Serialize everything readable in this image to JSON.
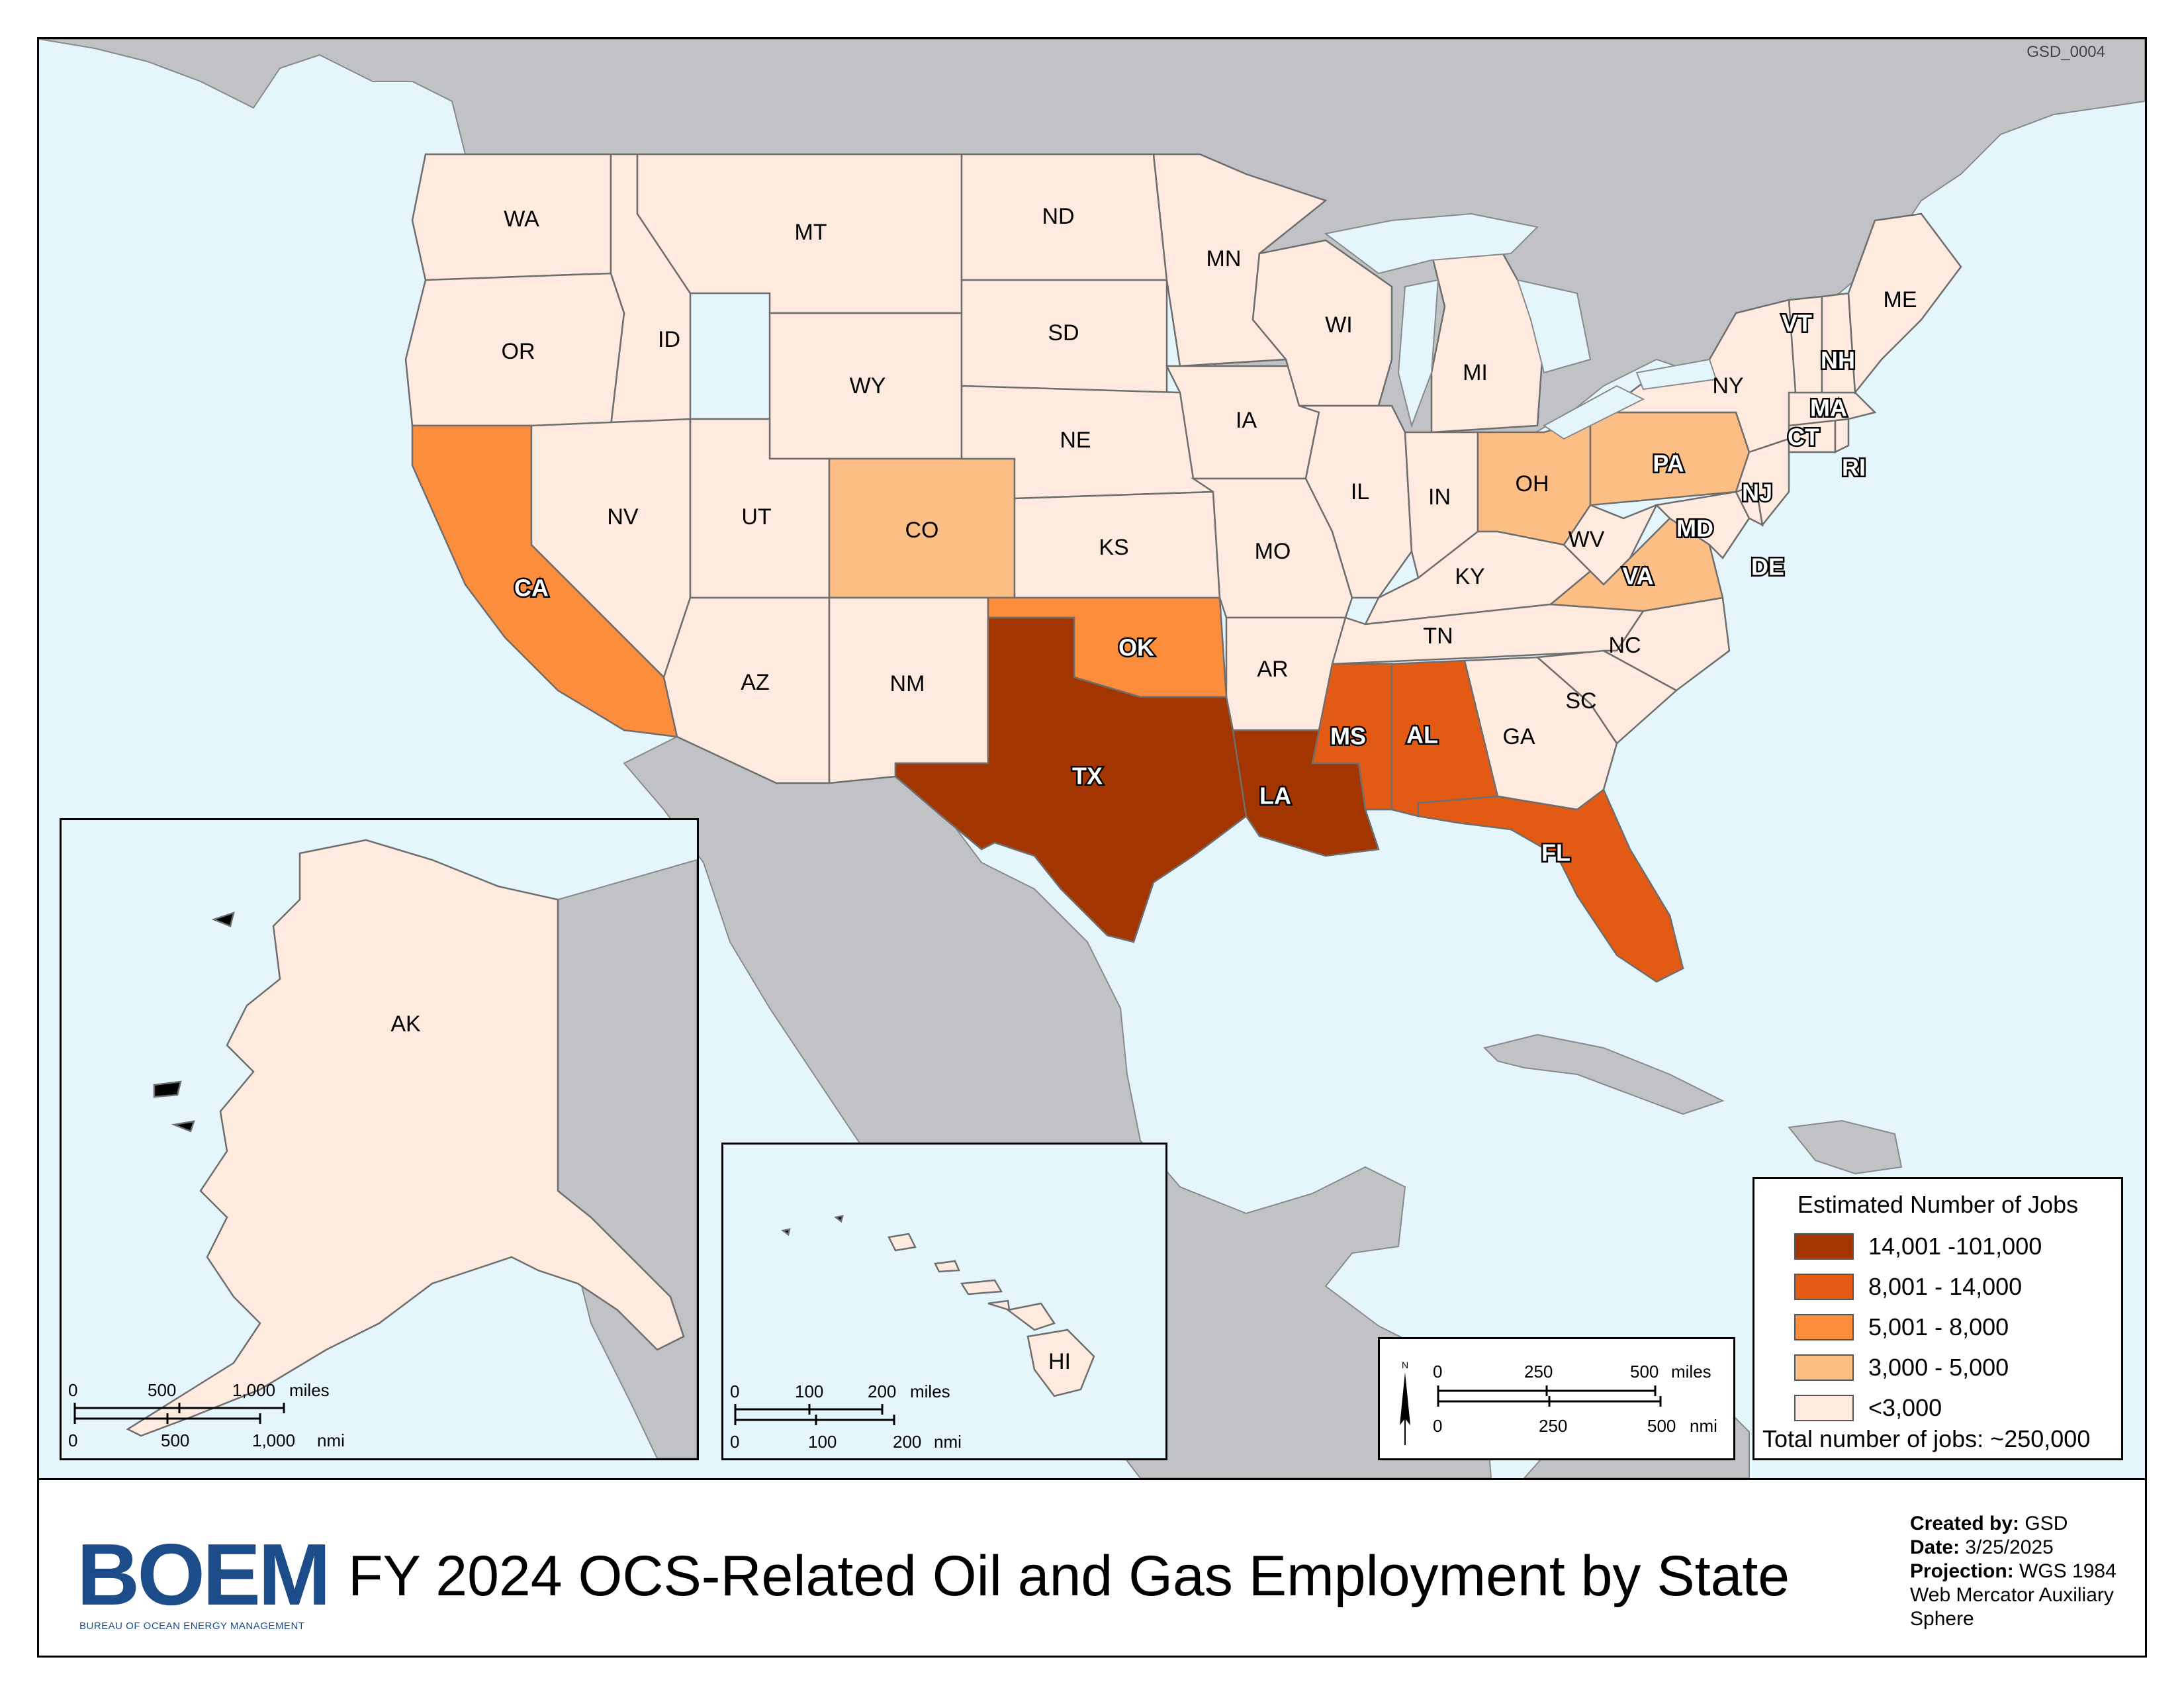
{
  "sheet_code": "GSD_0004",
  "title": "FY 2024 OCS-Related Oil and Gas Employment by State",
  "logo": {
    "text": "BOEM",
    "subtext": "BUREAU OF OCEAN ENERGY MANAGEMENT"
  },
  "metadata": {
    "created_by_label": "Created by:",
    "created_by": "GSD",
    "date_label": "Date:",
    "date": "3/25/2025",
    "projection_label": "Projection:",
    "projection": "WGS 1984 Web Mercator Auxiliary Sphere"
  },
  "legend": {
    "title": "Estimated Number of Jobs",
    "classes": [
      {
        "label": "14,001 -101,000",
        "color": "#a33600"
      },
      {
        "label": "8,001 - 14,000",
        "color": "#e35a14"
      },
      {
        "label": "5,001 - 8,000",
        "color": "#fb8d3d"
      },
      {
        "label": "3,000 - 5,000",
        "color": "#fdbe85"
      },
      {
        "label": "<3,000",
        "color": "#feeadf"
      }
    ],
    "total": "Total number of jobs: ~250,000"
  },
  "colors": {
    "water": "#e4f5fb",
    "land_other": "#c0c2c5",
    "border": "#6e6e6e"
  },
  "states": [
    {
      "abbr": "WA",
      "class": 4
    },
    {
      "abbr": "OR",
      "class": 4
    },
    {
      "abbr": "CA",
      "class": 2
    },
    {
      "abbr": "ID",
      "class": 4
    },
    {
      "abbr": "NV",
      "class": 4
    },
    {
      "abbr": "MT",
      "class": 4
    },
    {
      "abbr": "WY",
      "class": 4
    },
    {
      "abbr": "UT",
      "class": 4
    },
    {
      "abbr": "AZ",
      "class": 4
    },
    {
      "abbr": "CO",
      "class": 3
    },
    {
      "abbr": "NM",
      "class": 4
    },
    {
      "abbr": "ND",
      "class": 4
    },
    {
      "abbr": "SD",
      "class": 4
    },
    {
      "abbr": "NE",
      "class": 4
    },
    {
      "abbr": "KS",
      "class": 4
    },
    {
      "abbr": "OK",
      "class": 2
    },
    {
      "abbr": "TX",
      "class": 0
    },
    {
      "abbr": "MN",
      "class": 4
    },
    {
      "abbr": "IA",
      "class": 4
    },
    {
      "abbr": "MO",
      "class": 4
    },
    {
      "abbr": "AR",
      "class": 4
    },
    {
      "abbr": "LA",
      "class": 0
    },
    {
      "abbr": "WI",
      "class": 4
    },
    {
      "abbr": "IL",
      "class": 4
    },
    {
      "abbr": "MI",
      "class": 4
    },
    {
      "abbr": "IN",
      "class": 4
    },
    {
      "abbr": "KY",
      "class": 4
    },
    {
      "abbr": "TN",
      "class": 4
    },
    {
      "abbr": "MS",
      "class": 1
    },
    {
      "abbr": "AL",
      "class": 1
    },
    {
      "abbr": "OH",
      "class": 3
    },
    {
      "abbr": "WV",
      "class": 4
    },
    {
      "abbr": "GA",
      "class": 4
    },
    {
      "abbr": "FL",
      "class": 1
    },
    {
      "abbr": "SC",
      "class": 4
    },
    {
      "abbr": "NC",
      "class": 4
    },
    {
      "abbr": "VA",
      "class": 3
    },
    {
      "abbr": "PA",
      "class": 3
    },
    {
      "abbr": "NY",
      "class": 4
    },
    {
      "abbr": "MD",
      "class": 4
    },
    {
      "abbr": "DE",
      "class": 4
    },
    {
      "abbr": "NJ",
      "class": 4
    },
    {
      "abbr": "CT",
      "class": 4
    },
    {
      "abbr": "RI",
      "class": 4
    },
    {
      "abbr": "MA",
      "class": 4
    },
    {
      "abbr": "VT",
      "class": 4
    },
    {
      "abbr": "NH",
      "class": 4
    },
    {
      "abbr": "ME",
      "class": 4
    },
    {
      "abbr": "AK",
      "class": 4
    },
    {
      "abbr": "HI",
      "class": 4
    }
  ],
  "scalebars": {
    "alaska": {
      "top_ticks": [
        "0",
        "500",
        "1,000"
      ],
      "top_unit": "miles",
      "bottom_ticks": [
        "0",
        "500",
        "1,000"
      ],
      "bottom_unit": "nmi"
    },
    "hawaii": {
      "top_ticks": [
        "0",
        "100",
        "200"
      ],
      "top_unit": "miles",
      "bottom_ticks": [
        "0",
        "100",
        "200"
      ],
      "bottom_unit": "nmi"
    },
    "main": {
      "top_ticks": [
        "0",
        "250",
        "500"
      ],
      "top_unit": "miles",
      "bottom_ticks": [
        "0",
        "250",
        "500"
      ],
      "bottom_unit": "nmi",
      "north": "N"
    }
  }
}
